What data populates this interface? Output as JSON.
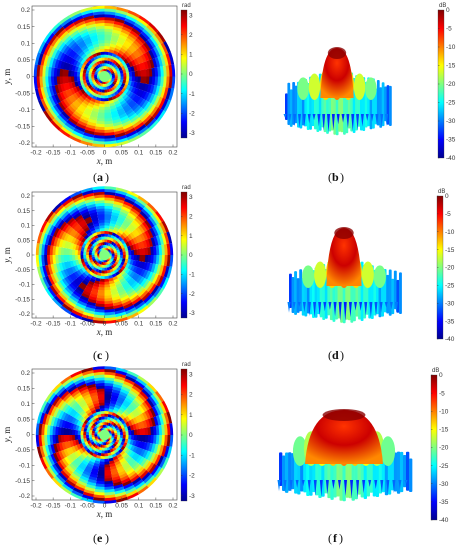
{
  "panels": [
    {
      "id": "a",
      "letter": "a",
      "type": "phase"
    },
    {
      "id": "b",
      "letter": "b",
      "type": "pattern"
    },
    {
      "id": "c",
      "letter": "c",
      "type": "phase"
    },
    {
      "id": "d",
      "letter": "d",
      "type": "pattern"
    },
    {
      "id": "e",
      "letter": "e",
      "type": "phase"
    },
    {
      "id": "f",
      "letter": "f",
      "type": "pattern"
    }
  ],
  "phase_axes": {
    "x_ticks": [
      "-0.2",
      "-0.15",
      "-0.1",
      "-0.05",
      "0",
      "0.05",
      "0.1",
      "0.15",
      "0.2"
    ],
    "y_ticks": [
      "0.2",
      "0.15",
      "0.1",
      "0.05",
      "0",
      "-0.05",
      "-0.1",
      "-0.15",
      "-0.2"
    ],
    "x_label_var": "x",
    "x_label_unit": ", m",
    "y_label_var": "y",
    "y_label_unit": ", m"
  },
  "phase_colorbar": {
    "unit": "rad",
    "ticks": [
      "3",
      "2",
      "1",
      "0",
      "-1",
      "-2",
      "-3"
    ]
  },
  "pattern_colorbar": {
    "unit": "dB",
    "ticks": [
      "0",
      "-5",
      "-10",
      "-15",
      "-20",
      "-25",
      "-30",
      "-35",
      "-40"
    ]
  },
  "colors": {
    "jet_stops": [
      "#00008f",
      "#0000ff",
      "#00ffff",
      "#ffff00",
      "#ff0000",
      "#800000"
    ]
  }
}
